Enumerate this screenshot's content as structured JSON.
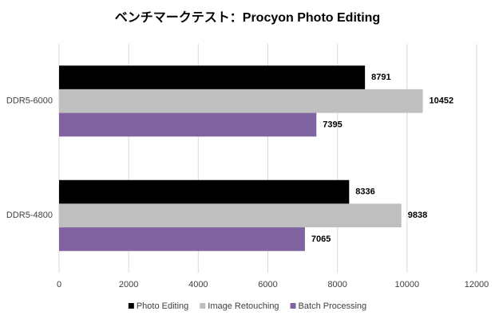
{
  "chart_data": {
    "type": "bar",
    "orientation": "horizontal",
    "title": "ベンチマークテスト：Procyon Photo Editing",
    "categories": [
      "DDR5-6000",
      "DDR5-4800"
    ],
    "series": [
      {
        "name": "Photo Editing",
        "color": "#000000",
        "values": [
          8791,
          8336
        ]
      },
      {
        "name": "Image Retouching",
        "color": "#bfbfbf",
        "values": [
          10452,
          9838
        ]
      },
      {
        "name": "Batch Processing",
        "color": "#8064a2",
        "values": [
          7395,
          7065
        ]
      }
    ],
    "xlim": [
      0,
      12000
    ],
    "xticks": [
      0,
      2000,
      4000,
      6000,
      8000,
      10000,
      12000
    ],
    "grid": true,
    "legend": "bottom",
    "data_labels": true
  }
}
